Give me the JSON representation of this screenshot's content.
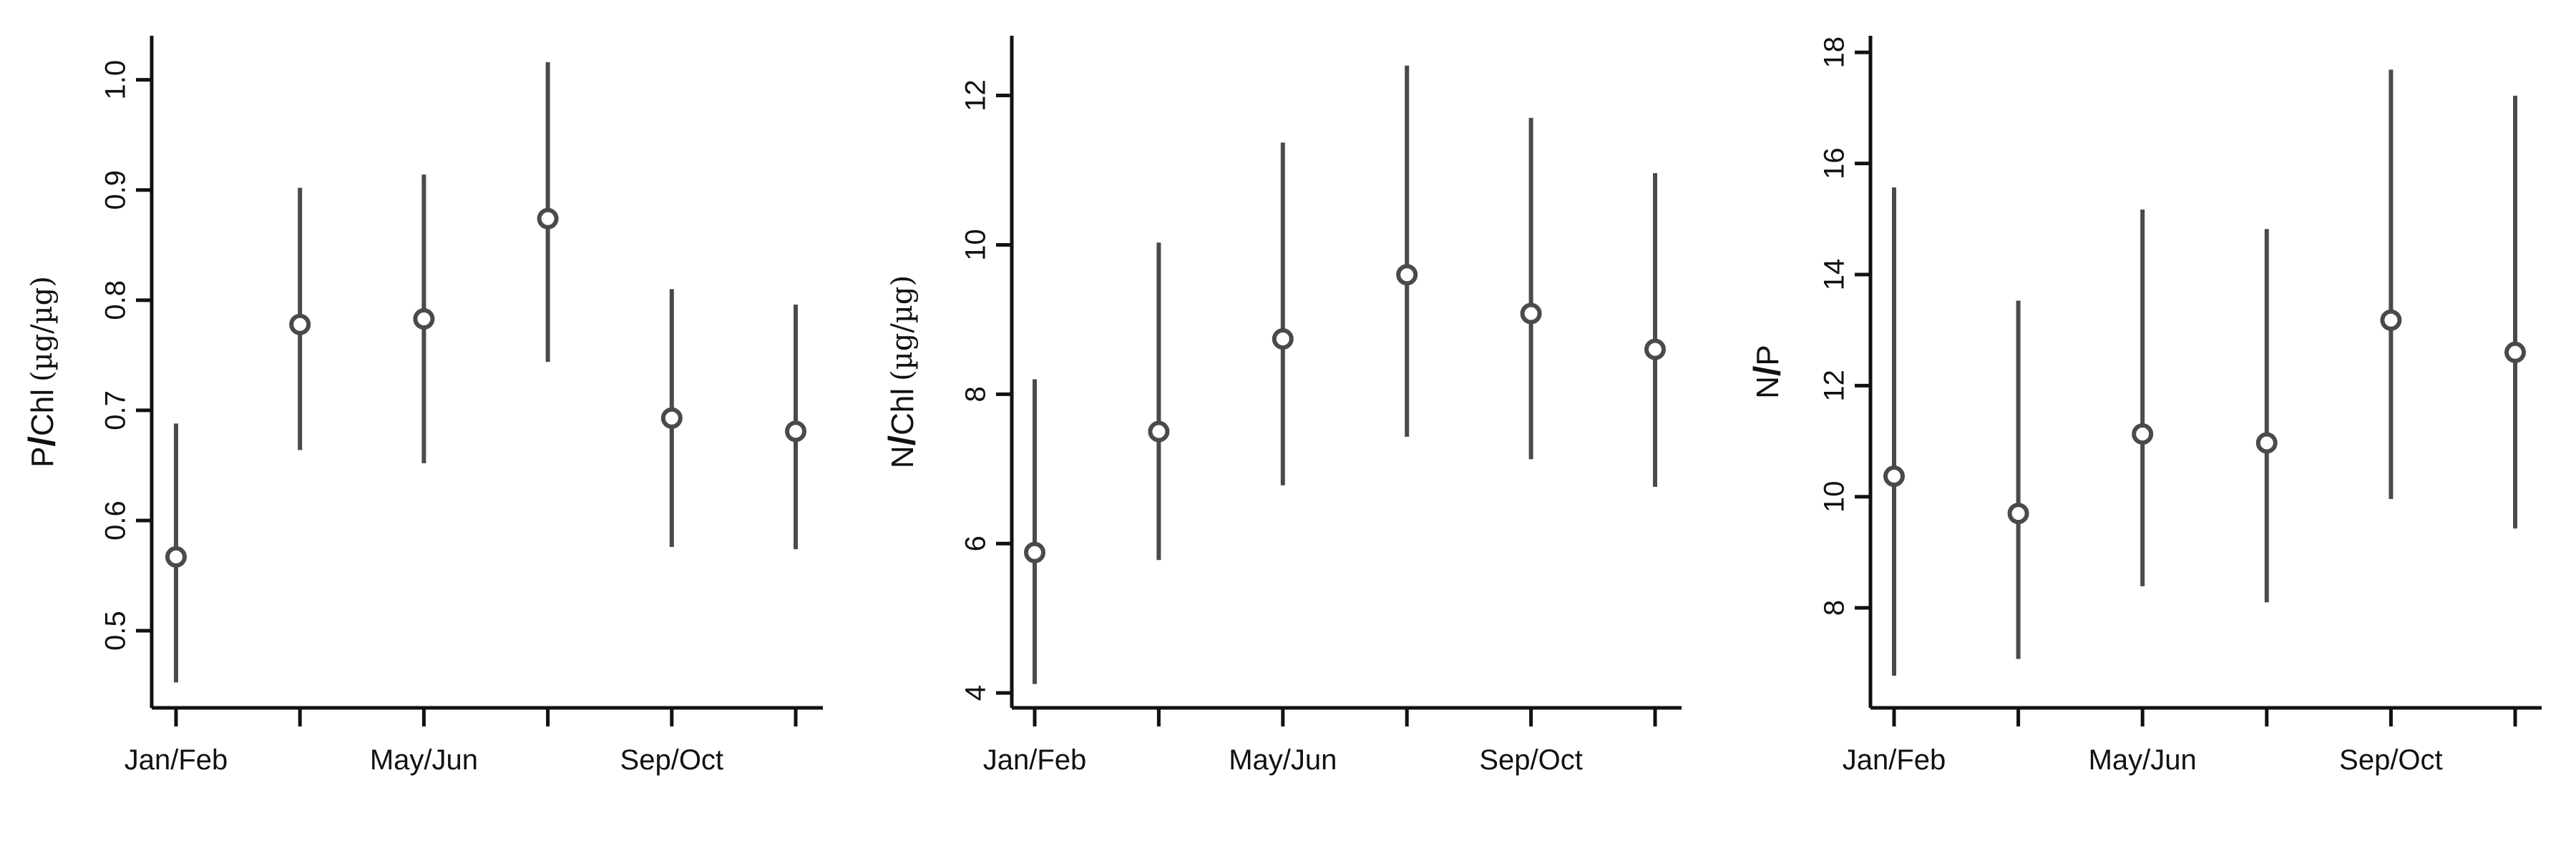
{
  "chart_data": [
    {
      "type": "scatter",
      "ylabel": {
        "var": "P",
        "slash": "/",
        "denom": "Chl",
        "unit": "(µg/µg)"
      },
      "x_tick_labels": [
        "Jan/Feb",
        "",
        "May/Jun",
        "",
        "Sep/Oct",
        ""
      ],
      "y_ticks": [
        "0.5",
        "0.6",
        "0.7",
        "0.8",
        "0.9",
        "1.0"
      ],
      "ylim": [
        0.43,
        1.04
      ],
      "points": [
        {
          "mean": 0.567,
          "low": 0.453,
          "high": 0.688
        },
        {
          "mean": 0.778,
          "low": 0.664,
          "high": 0.902
        },
        {
          "mean": 0.783,
          "low": 0.652,
          "high": 0.914
        },
        {
          "mean": 0.874,
          "low": 0.744,
          "high": 1.016
        },
        {
          "mean": 0.693,
          "low": 0.576,
          "high": 0.81
        },
        {
          "mean": 0.681,
          "low": 0.574,
          "high": 0.796
        }
      ]
    },
    {
      "type": "scatter",
      "ylabel": {
        "var": "N",
        "slash": "/",
        "denom": "Chl",
        "unit": "(µg/µg)"
      },
      "x_tick_labels": [
        "Jan/Feb",
        "",
        "May/Jun",
        "",
        "Sep/Oct",
        ""
      ],
      "y_ticks": [
        "4",
        "6",
        "8",
        "10",
        "12"
      ],
      "ylim": [
        3.8,
        12.8
      ],
      "points": [
        {
          "mean": 5.88,
          "low": 4.12,
          "high": 8.2
        },
        {
          "mean": 7.5,
          "low": 5.78,
          "high": 10.03
        },
        {
          "mean": 8.74,
          "low": 6.78,
          "high": 11.37
        },
        {
          "mean": 9.6,
          "low": 7.43,
          "high": 12.4
        },
        {
          "mean": 9.08,
          "low": 7.13,
          "high": 11.7
        },
        {
          "mean": 8.6,
          "low": 6.76,
          "high": 10.96
        }
      ]
    },
    {
      "type": "scatter",
      "ylabel": {
        "var": "N",
        "slash": "/",
        "denom": "P",
        "unit": ""
      },
      "x_tick_labels": [
        "Jan/Feb",
        "",
        "May/Jun",
        "",
        "Sep/Oct",
        ""
      ],
      "y_ticks": [
        "8",
        "10",
        "12",
        "14",
        "16",
        "18"
      ],
      "ylim": [
        6.2,
        18.3
      ],
      "points": [
        {
          "mean": 10.37,
          "low": 6.78,
          "high": 15.57
        },
        {
          "mean": 9.7,
          "low": 7.08,
          "high": 13.53
        },
        {
          "mean": 11.13,
          "low": 8.39,
          "high": 15.17
        },
        {
          "mean": 10.97,
          "low": 8.1,
          "high": 14.82
        },
        {
          "mean": 13.18,
          "low": 9.96,
          "high": 17.69
        },
        {
          "mean": 12.6,
          "low": 9.43,
          "high": 17.22
        }
      ]
    }
  ]
}
